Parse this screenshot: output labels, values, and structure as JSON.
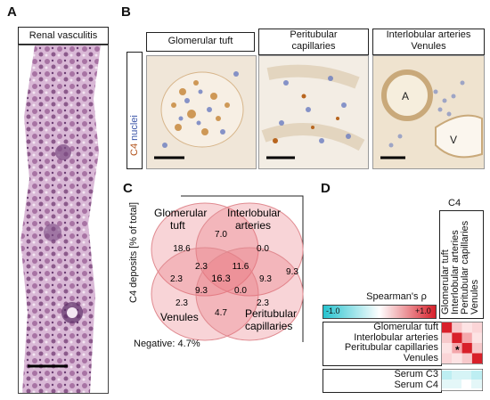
{
  "panels": {
    "a": "A",
    "b": "B",
    "c": "C",
    "d": "D"
  },
  "panel_a": {
    "title": "Renal vasculitis"
  },
  "panel_b": {
    "stain_c4": "C4",
    "stain_nuclei": "nuclei",
    "columns": [
      {
        "label": "Glomerular tuft"
      },
      {
        "label": "Peritubular capillaries"
      },
      {
        "label": "Interlobular arteries Venules"
      }
    ],
    "artery_marker": "A",
    "venule_marker": "V"
  },
  "panel_c": {
    "ylabel": "C4 deposits [% of total]",
    "sets": {
      "glomerular": "Glomerular tuft",
      "interlobular": "Interlobular arteries",
      "venules": "Venules",
      "peritubular": "Peritubular capillaries"
    },
    "values": {
      "g_only": "18.6",
      "gi": "7.0",
      "i_only": "0.0",
      "gv_left": "2.3",
      "gi_inner_left": "2.3",
      "gi_inner_right": "11.6",
      "center": "16.3",
      "ip_right": "9.3",
      "outer_right": "9.3",
      "vp_lower": "9.3",
      "vp_center": "0.0",
      "v_only": "2.3",
      "p_only": "2.3",
      "vp_bottom": "4.7"
    },
    "negative": "Negative: 4.7%"
  },
  "panel_d": {
    "column_header": "C4",
    "column_labels": [
      "Glomerular tuft",
      "Interlobular arteries",
      "Peritubular capillaries",
      "Venules"
    ],
    "legend_title": "Spearman's ρ",
    "legend_min": "-1.0",
    "legend_max": "+1.0",
    "row_labels": [
      "Glomerular tuft",
      "Interlobular arteries",
      "Peritubular capillaries",
      "Venules"
    ],
    "serum_labels": [
      "Serum C3",
      "Serum C4"
    ],
    "significance": "*",
    "colors": {
      "negative": "#27c3cf",
      "positive": "#d8202a",
      "neutral": "#ffffff"
    }
  }
}
